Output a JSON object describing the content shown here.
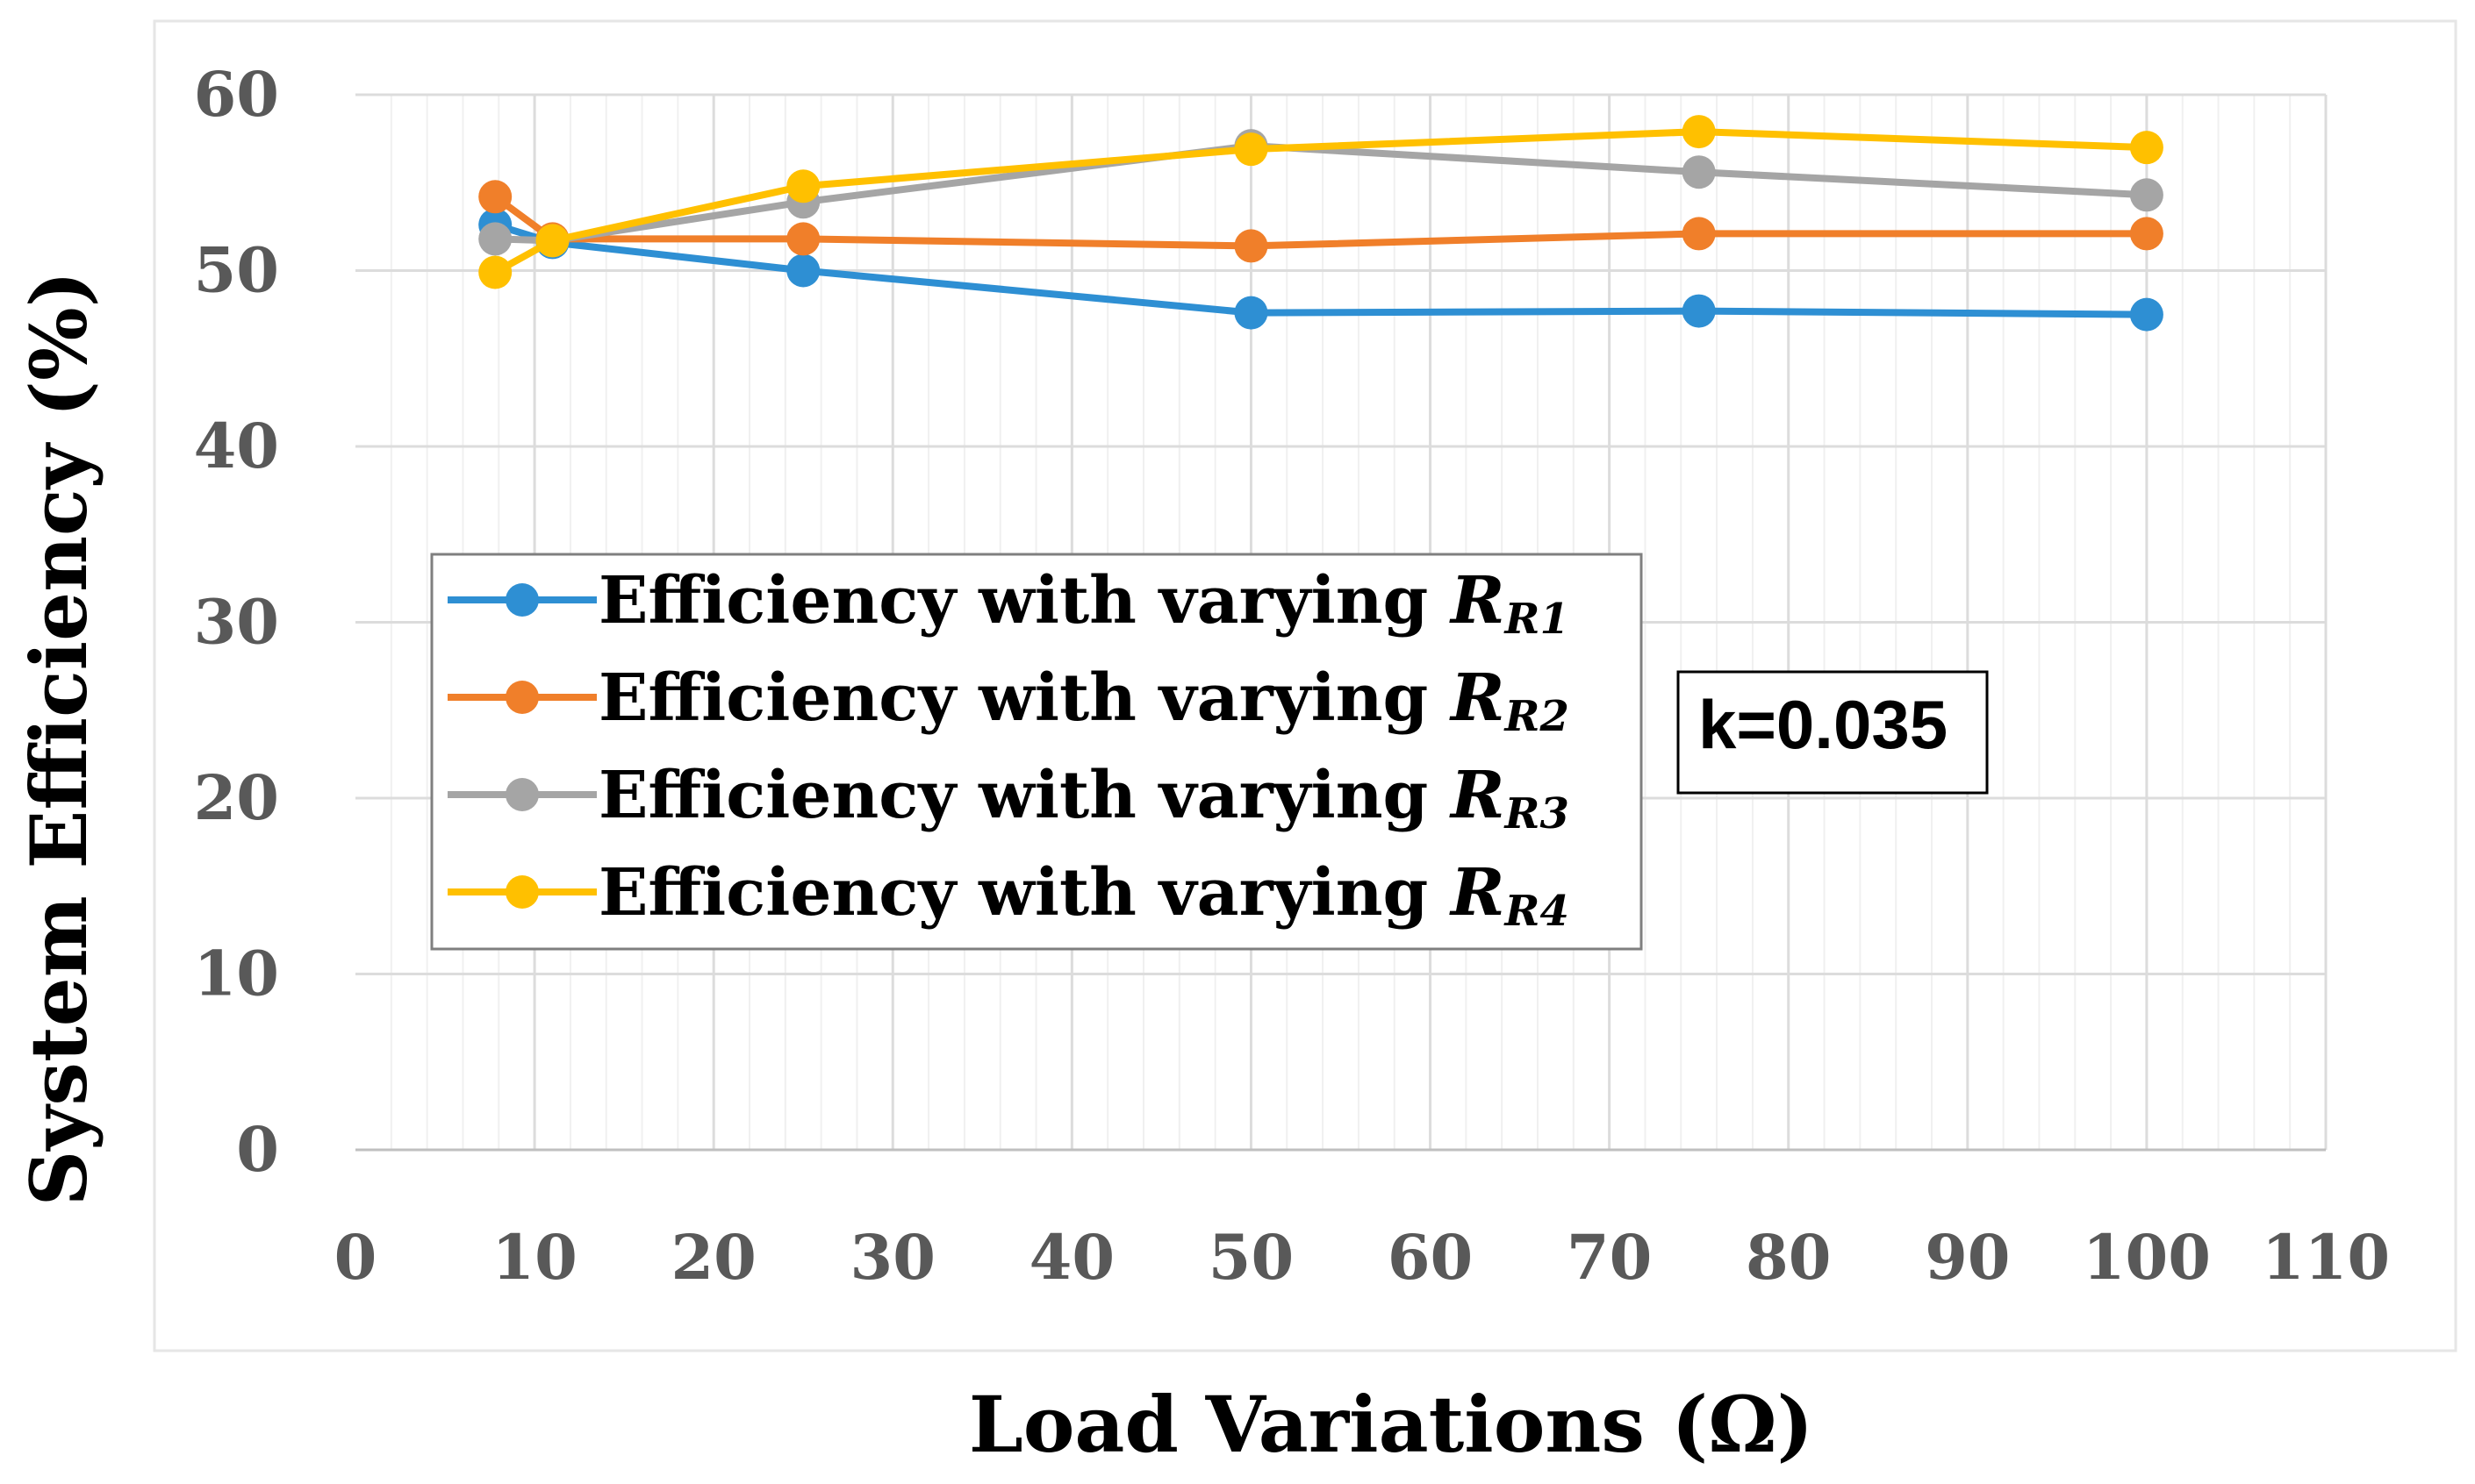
{
  "chart_data": {
    "type": "line",
    "title": "",
    "xlabel": "Load Variations (Ω)",
    "ylabel": "System Efficiency (%)",
    "xlim": [
      0,
      110
    ],
    "ylim": [
      0,
      60
    ],
    "x_ticks": [
      "0",
      "10",
      "20",
      "30",
      "40",
      "50",
      "60",
      "70",
      "80",
      "90",
      "100",
      "110"
    ],
    "y_ticks": [
      "0",
      "10",
      "20",
      "30",
      "40",
      "50",
      "60"
    ],
    "grid": true,
    "legend_position": "center-left",
    "series": [
      {
        "name": "Efficiency with varying",
        "subscript_label": "R1",
        "color": "#2E8FD3",
        "x": [
          7.8,
          11,
          25,
          50,
          75,
          100
        ],
        "values": [
          52.6,
          51.6,
          50.0,
          47.6,
          47.7,
          47.5
        ]
      },
      {
        "name": "Efficiency with varying",
        "subscript_label": "R2",
        "color": "#F07F2A",
        "x": [
          7.8,
          11,
          25,
          50,
          75,
          100
        ],
        "values": [
          54.2,
          51.8,
          51.8,
          51.4,
          52.1,
          52.1
        ]
      },
      {
        "name": "Efficiency with varying",
        "subscript_label": "R3",
        "color": "#A5A5A5",
        "x": [
          7.8,
          11,
          25,
          50,
          75,
          100
        ],
        "values": [
          51.8,
          51.7,
          53.9,
          57.1,
          55.6,
          54.3
        ]
      },
      {
        "name": "Efficiency with varying",
        "subscript_label": "R4",
        "color": "#FFC000",
        "x": [
          7.8,
          11,
          25,
          50,
          75,
          100
        ],
        "values": [
          49.9,
          51.7,
          54.8,
          56.9,
          57.9,
          57.0
        ]
      }
    ],
    "annotation": "k=0.035"
  },
  "legend": {
    "r_symbol": "R",
    "sub_prefix": "R"
  }
}
